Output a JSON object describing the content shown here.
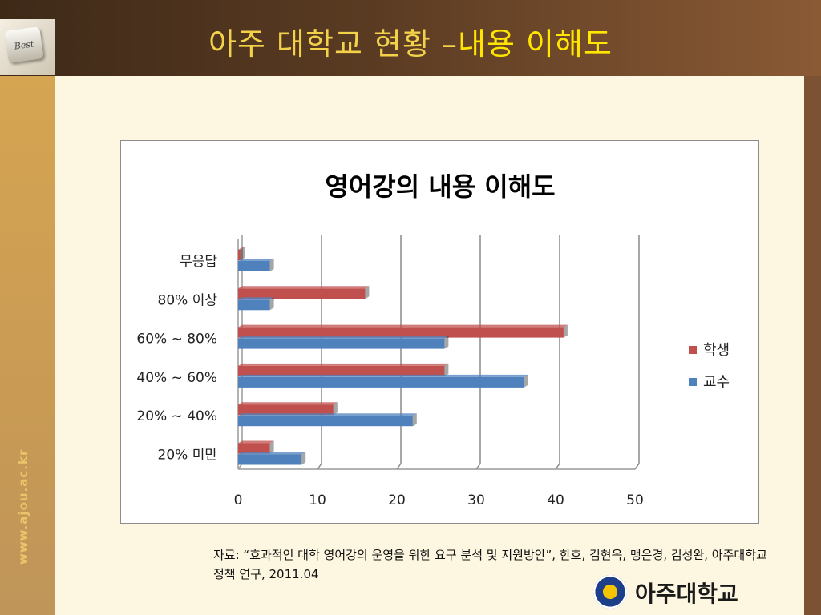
{
  "slide": {
    "title_main": "아주 대학교 현황 –",
    "title_highlight": "내용 이해도",
    "badge_text": "Best",
    "side_url": "www.ajou.ac.kr",
    "source_text": "자료: “효과적인 대학 영어강의 운영을 위한 요구 분석 및 지원방안”, 한호, 김현옥, 맹은경, 김성완, 아주대학교 정책 연구, 2011.04",
    "university_name": "아주대학교"
  },
  "colors": {
    "student": "#c0504d",
    "professor": "#4f81bd",
    "title": "#f3d24a",
    "title_highlight": "#ffe600"
  },
  "chart_data": {
    "type": "bar",
    "orientation": "horizontal",
    "title": "영어강의 내용 이해도",
    "categories": [
      "무응답",
      "80% 이상",
      "60% ~ 80%",
      "40% ~ 60%",
      "20% ~ 40%",
      "20% 미만"
    ],
    "series": [
      {
        "name": "학생",
        "color": "#c0504d",
        "values": [
          0.3,
          16,
          41,
          26,
          12,
          4
        ]
      },
      {
        "name": "교수",
        "color": "#4f81bd",
        "values": [
          4,
          4,
          26,
          36,
          22,
          8
        ]
      }
    ],
    "xlim": [
      0,
      50
    ],
    "xticks": [
      "0",
      "10",
      "20",
      "30",
      "40",
      "50"
    ],
    "grid": true,
    "legend": "right",
    "style": "3d"
  }
}
